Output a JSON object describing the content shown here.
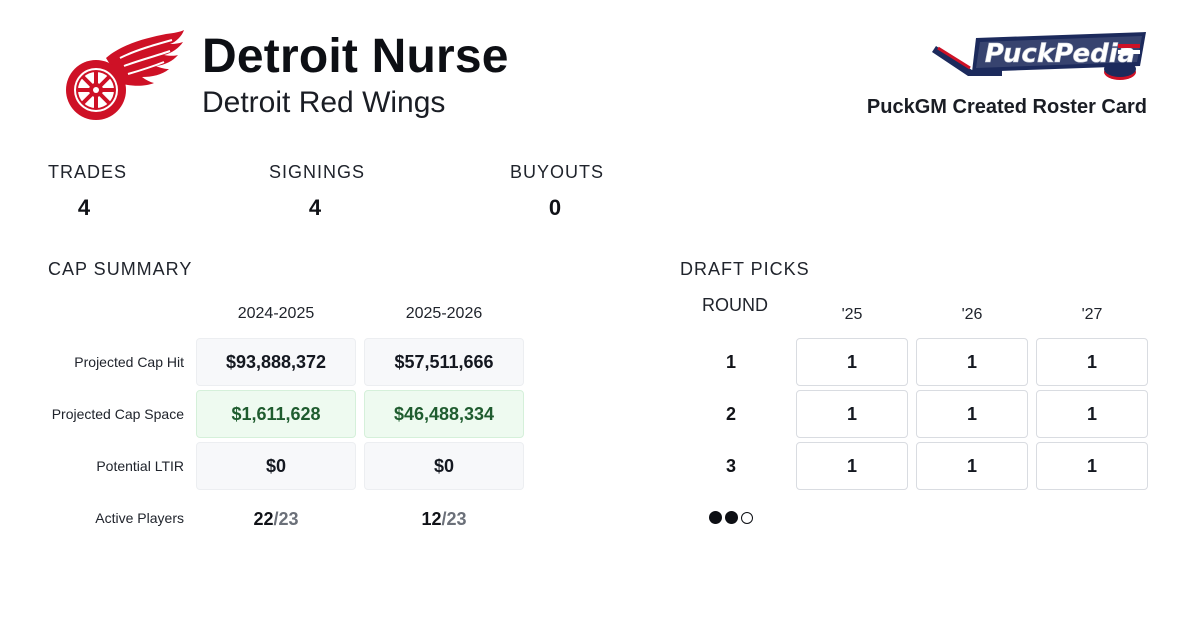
{
  "header": {
    "gm_name": "Detroit Nurse",
    "team_name": "Detroit Red Wings",
    "team_logo_icon": "red-wings-winged-wheel-logo",
    "brand_logo_icon": "puckpedia-logo",
    "brand_logo_text": "PuckPedia",
    "card_caption": "PuckGM Created Roster Card"
  },
  "stats": [
    {
      "label": "TRADES",
      "value": "4"
    },
    {
      "label": "SIGNINGS",
      "value": "4"
    },
    {
      "label": "BUYOUTS",
      "value": "0"
    }
  ],
  "cap_summary": {
    "title": "CAP SUMMARY",
    "columns": [
      "2024-2025",
      "2025-2026"
    ],
    "rows": [
      {
        "label": "Projected Cap Hit",
        "values": [
          "$93,888,372",
          "$57,511,666"
        ]
      },
      {
        "label": "Projected Cap Space",
        "values": [
          "$1,611,628",
          "$46,488,334"
        ]
      },
      {
        "label": "Potential LTIR",
        "values": [
          "$0",
          "$0"
        ]
      }
    ],
    "active_players": {
      "label": "Active Players",
      "values": [
        {
          "count": "22",
          "max": "/23"
        },
        {
          "count": "12",
          "max": "/23"
        }
      ]
    }
  },
  "draft_picks": {
    "title": "DRAFT PICKS",
    "round_header": "ROUND",
    "years": [
      "'25",
      "'26",
      "'27"
    ],
    "rounds": [
      {
        "round": "1",
        "picks": [
          "1",
          "1",
          "1"
        ]
      },
      {
        "round": "2",
        "picks": [
          "1",
          "1",
          "1"
        ]
      },
      {
        "round": "3",
        "picks": [
          "1",
          "1",
          "1"
        ]
      }
    ],
    "page_indicator": {
      "total": 3,
      "filled": 2
    }
  },
  "colors": {
    "red_wings_red": "#ce1126",
    "puckpedia_navy": "#1c2a5c",
    "cap_space_green": "#1f5c2f",
    "cap_space_bg": "#eefaf0",
    "cell_bg": "#f7f8fa"
  }
}
